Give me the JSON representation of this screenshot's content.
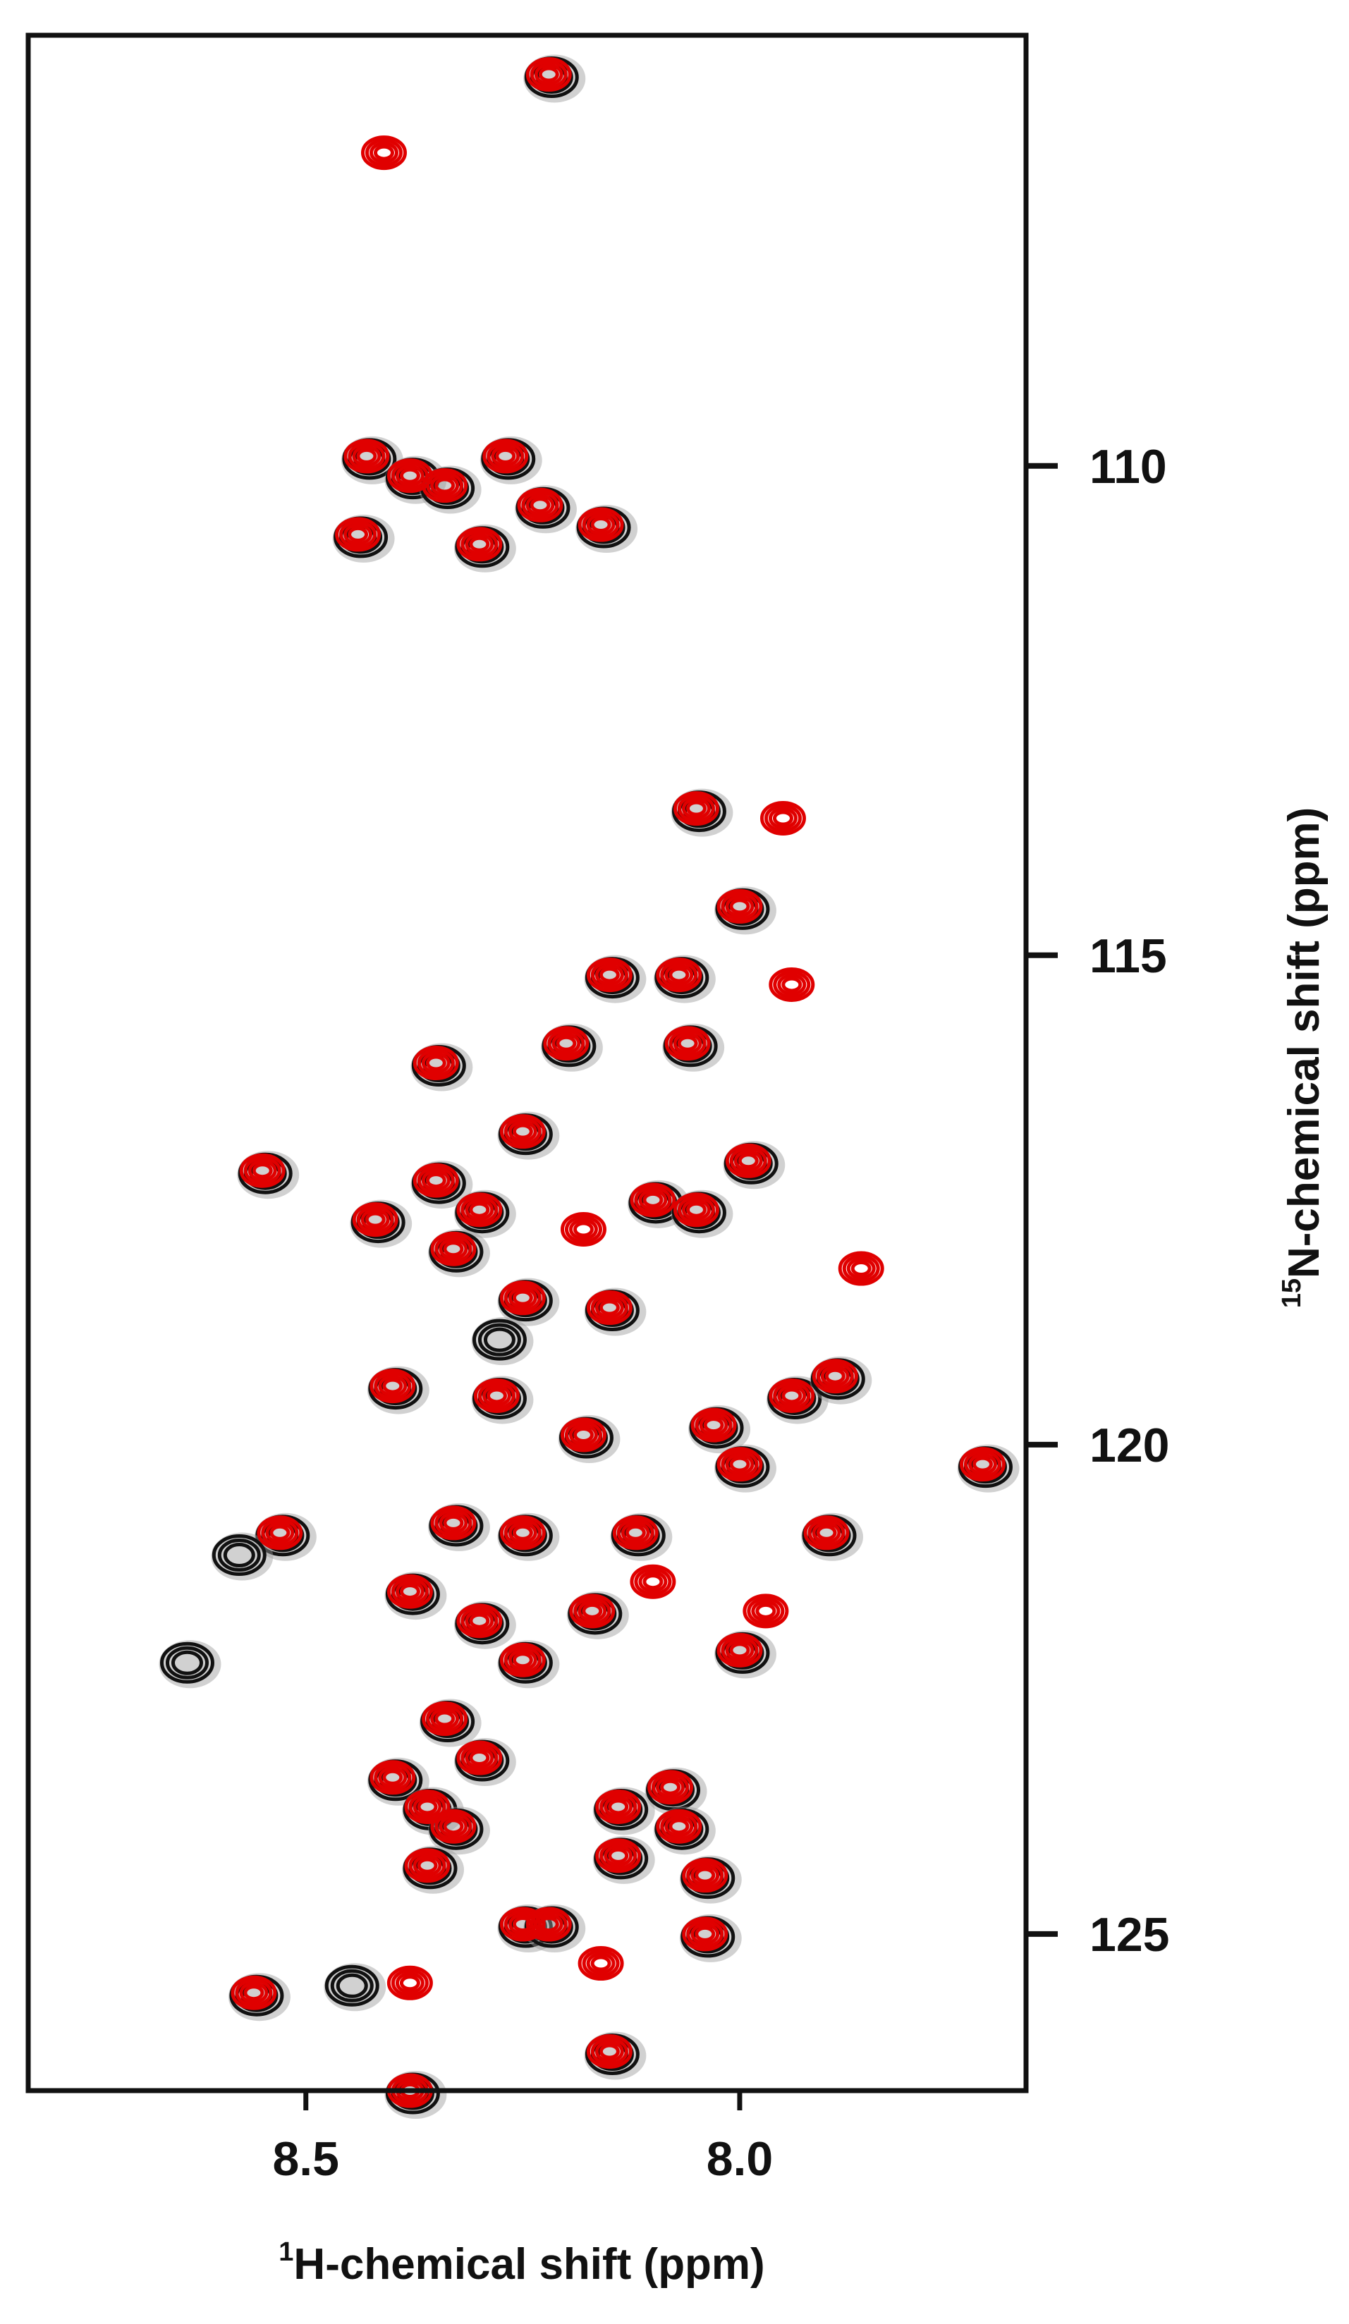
{
  "chart_data": {
    "type": "scatter",
    "title": "",
    "xlabel": {
      "sup": "1",
      "text": "H-chemical shift (ppm)"
    },
    "ylabel": {
      "sup": "15",
      "text": "N-chemical shift (ppm)"
    },
    "x_reversed": true,
    "y_reversed": true,
    "xlim": [
      8.82,
      7.67
    ],
    "ylim": [
      105.6,
      126.6
    ],
    "x_ticks": [
      {
        "value": 8.5,
        "label": "8.5"
      },
      {
        "value": 8.0,
        "label": "8.0"
      }
    ],
    "y_ticks": [
      {
        "value": 110,
        "label": "110"
      },
      {
        "value": 115,
        "label": "115"
      },
      {
        "value": 120,
        "label": "120"
      },
      {
        "value": 125,
        "label": "125"
      }
    ],
    "tick_side": "right",
    "grid": false,
    "colors": {
      "series_a": "#111111",
      "series_b": "#e00000"
    },
    "series": [
      {
        "color": "#111111",
        "points": [
          {
            "x": 8.22,
            "y": 106.0
          },
          {
            "x": 8.43,
            "y": 109.9
          },
          {
            "x": 8.38,
            "y": 110.1
          },
          {
            "x": 8.34,
            "y": 110.2
          },
          {
            "x": 8.27,
            "y": 109.9
          },
          {
            "x": 8.23,
            "y": 110.4
          },
          {
            "x": 8.3,
            "y": 110.8
          },
          {
            "x": 8.16,
            "y": 110.6
          },
          {
            "x": 8.44,
            "y": 110.7
          },
          {
            "x": 8.05,
            "y": 113.5
          },
          {
            "x": 8.0,
            "y": 114.5
          },
          {
            "x": 8.15,
            "y": 115.2
          },
          {
            "x": 8.07,
            "y": 115.2
          },
          {
            "x": 8.2,
            "y": 115.9
          },
          {
            "x": 8.06,
            "y": 115.9
          },
          {
            "x": 8.35,
            "y": 116.1
          },
          {
            "x": 8.25,
            "y": 116.8
          },
          {
            "x": 7.99,
            "y": 117.1
          },
          {
            "x": 8.55,
            "y": 117.2
          },
          {
            "x": 8.35,
            "y": 117.3
          },
          {
            "x": 8.42,
            "y": 117.7
          },
          {
            "x": 8.3,
            "y": 117.6
          },
          {
            "x": 8.1,
            "y": 117.5
          },
          {
            "x": 8.05,
            "y": 117.6
          },
          {
            "x": 8.33,
            "y": 118.0
          },
          {
            "x": 8.25,
            "y": 118.5
          },
          {
            "x": 8.15,
            "y": 118.6
          },
          {
            "x": 8.28,
            "y": 118.9
          },
          {
            "x": 8.4,
            "y": 119.4
          },
          {
            "x": 8.28,
            "y": 119.5
          },
          {
            "x": 8.18,
            "y": 119.9
          },
          {
            "x": 8.03,
            "y": 119.8
          },
          {
            "x": 7.94,
            "y": 119.5
          },
          {
            "x": 7.89,
            "y": 119.3
          },
          {
            "x": 8.0,
            "y": 120.2
          },
          {
            "x": 7.9,
            "y": 120.9
          },
          {
            "x": 8.53,
            "y": 120.9
          },
          {
            "x": 8.58,
            "y": 121.1
          },
          {
            "x": 8.33,
            "y": 120.8
          },
          {
            "x": 8.25,
            "y": 120.9
          },
          {
            "x": 8.12,
            "y": 120.9
          },
          {
            "x": 8.38,
            "y": 121.5
          },
          {
            "x": 8.3,
            "y": 121.8
          },
          {
            "x": 8.17,
            "y": 121.7
          },
          {
            "x": 8.64,
            "y": 122.2
          },
          {
            "x": 8.25,
            "y": 122.2
          },
          {
            "x": 8.0,
            "y": 122.1
          },
          {
            "x": 8.34,
            "y": 122.8
          },
          {
            "x": 8.3,
            "y": 123.2
          },
          {
            "x": 8.4,
            "y": 123.4
          },
          {
            "x": 8.36,
            "y": 123.7
          },
          {
            "x": 8.33,
            "y": 123.9
          },
          {
            "x": 8.14,
            "y": 123.7
          },
          {
            "x": 8.08,
            "y": 123.5
          },
          {
            "x": 8.07,
            "y": 123.9
          },
          {
            "x": 8.36,
            "y": 124.3
          },
          {
            "x": 8.14,
            "y": 124.2
          },
          {
            "x": 8.04,
            "y": 124.4
          },
          {
            "x": 8.25,
            "y": 124.9
          },
          {
            "x": 8.22,
            "y": 124.9
          },
          {
            "x": 8.04,
            "y": 125.0
          },
          {
            "x": 8.45,
            "y": 125.5
          },
          {
            "x": 8.56,
            "y": 125.6
          },
          {
            "x": 8.15,
            "y": 126.2
          },
          {
            "x": 8.38,
            "y": 126.6
          },
          {
            "x": 7.72,
            "y": 120.2
          }
        ]
      },
      {
        "color": "#e00000",
        "points": [
          {
            "x": 8.22,
            "y": 106.0
          },
          {
            "x": 8.41,
            "y": 106.8
          },
          {
            "x": 8.43,
            "y": 109.9
          },
          {
            "x": 8.38,
            "y": 110.1
          },
          {
            "x": 8.34,
            "y": 110.2
          },
          {
            "x": 8.27,
            "y": 109.9
          },
          {
            "x": 8.23,
            "y": 110.4
          },
          {
            "x": 8.3,
            "y": 110.8
          },
          {
            "x": 8.16,
            "y": 110.6
          },
          {
            "x": 8.44,
            "y": 110.7
          },
          {
            "x": 8.05,
            "y": 113.5
          },
          {
            "x": 7.95,
            "y": 113.6
          },
          {
            "x": 8.0,
            "y": 114.5
          },
          {
            "x": 8.15,
            "y": 115.2
          },
          {
            "x": 8.07,
            "y": 115.2
          },
          {
            "x": 7.94,
            "y": 115.3
          },
          {
            "x": 8.2,
            "y": 115.9
          },
          {
            "x": 8.06,
            "y": 115.9
          },
          {
            "x": 8.35,
            "y": 116.1
          },
          {
            "x": 8.25,
            "y": 116.8
          },
          {
            "x": 7.99,
            "y": 117.1
          },
          {
            "x": 8.55,
            "y": 117.2
          },
          {
            "x": 8.35,
            "y": 117.3
          },
          {
            "x": 8.42,
            "y": 117.7
          },
          {
            "x": 8.3,
            "y": 117.6
          },
          {
            "x": 8.1,
            "y": 117.5
          },
          {
            "x": 8.05,
            "y": 117.6
          },
          {
            "x": 8.18,
            "y": 117.8
          },
          {
            "x": 8.33,
            "y": 118.0
          },
          {
            "x": 8.25,
            "y": 118.5
          },
          {
            "x": 8.15,
            "y": 118.6
          },
          {
            "x": 7.86,
            "y": 118.2
          },
          {
            "x": 8.4,
            "y": 119.4
          },
          {
            "x": 8.28,
            "y": 119.5
          },
          {
            "x": 8.18,
            "y": 119.9
          },
          {
            "x": 8.03,
            "y": 119.8
          },
          {
            "x": 7.94,
            "y": 119.5
          },
          {
            "x": 7.89,
            "y": 119.3
          },
          {
            "x": 8.0,
            "y": 120.2
          },
          {
            "x": 7.9,
            "y": 120.9
          },
          {
            "x": 8.53,
            "y": 120.9
          },
          {
            "x": 8.33,
            "y": 120.8
          },
          {
            "x": 8.25,
            "y": 120.9
          },
          {
            "x": 8.12,
            "y": 120.9
          },
          {
            "x": 8.38,
            "y": 121.5
          },
          {
            "x": 8.3,
            "y": 121.8
          },
          {
            "x": 8.17,
            "y": 121.7
          },
          {
            "x": 8.1,
            "y": 121.4
          },
          {
            "x": 8.25,
            "y": 122.2
          },
          {
            "x": 8.0,
            "y": 122.1
          },
          {
            "x": 7.97,
            "y": 121.7
          },
          {
            "x": 8.34,
            "y": 122.8
          },
          {
            "x": 8.3,
            "y": 123.2
          },
          {
            "x": 8.4,
            "y": 123.4
          },
          {
            "x": 8.36,
            "y": 123.7
          },
          {
            "x": 8.33,
            "y": 123.9
          },
          {
            "x": 8.14,
            "y": 123.7
          },
          {
            "x": 8.08,
            "y": 123.5
          },
          {
            "x": 8.07,
            "y": 123.9
          },
          {
            "x": 8.36,
            "y": 124.3
          },
          {
            "x": 8.14,
            "y": 124.2
          },
          {
            "x": 8.04,
            "y": 124.4
          },
          {
            "x": 8.25,
            "y": 124.9
          },
          {
            "x": 8.22,
            "y": 124.9
          },
          {
            "x": 8.04,
            "y": 125.0
          },
          {
            "x": 8.16,
            "y": 125.3
          },
          {
            "x": 8.38,
            "y": 125.5
          },
          {
            "x": 8.56,
            "y": 125.6
          },
          {
            "x": 8.15,
            "y": 126.2
          },
          {
            "x": 8.38,
            "y": 126.6
          },
          {
            "x": 7.72,
            "y": 120.2
          }
        ]
      }
    ]
  }
}
